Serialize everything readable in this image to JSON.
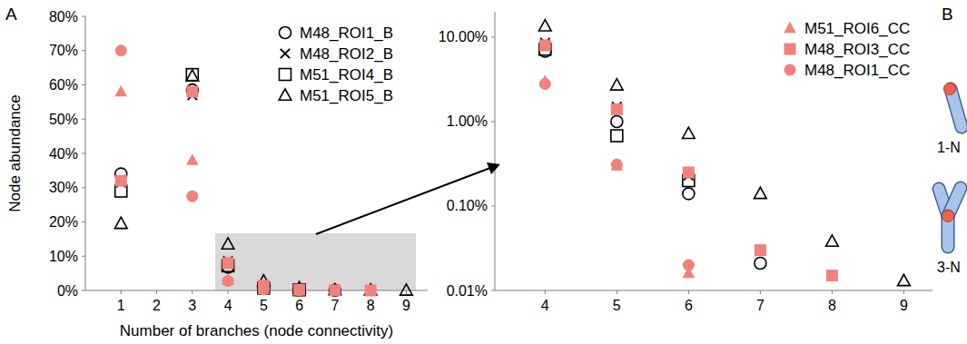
{
  "chart_data": [
    {
      "type": "scatter",
      "x_label": "Number of branches (node connectivity)",
      "y_label": "Node abundance",
      "x": [
        1,
        3,
        4,
        5,
        6,
        7,
        8,
        9
      ],
      "series": [
        {
          "name": "M48_ROI1_B",
          "color": "#000000",
          "marker": "circle-open",
          "values": [
            34,
            58.5,
            6.8,
            1.0,
            0.14,
            0.021,
            null,
            null
          ]
        },
        {
          "name": "M48_ROI2_B",
          "color": "#000000",
          "marker": "x",
          "values": [
            31.5,
            57,
            8.6,
            1.5,
            0.23,
            null,
            null,
            null
          ]
        },
        {
          "name": "M51_ROI4_B",
          "color": "#000000",
          "marker": "square-open",
          "values": [
            29,
            63,
            7.2,
            0.68,
            0.2,
            null,
            null,
            null
          ]
        },
        {
          "name": "M51_ROI5_B",
          "color": "#000000",
          "marker": "triangle-open",
          "values": [
            19.5,
            62.5,
            13.5,
            2.7,
            0.72,
            0.14,
            0.038,
            0.013
          ]
        },
        {
          "name": "M51_ROI6_CC",
          "color": "#f2817b",
          "marker": "triangle",
          "values": [
            58,
            38,
            3.0,
            0.3,
            0.016,
            null,
            null,
            null
          ]
        },
        {
          "name": "M48_ROI3_CC",
          "color": "#f2817b",
          "marker": "square",
          "values": [
            32,
            58,
            8.0,
            1.4,
            0.25,
            0.03,
            0.015,
            null
          ]
        },
        {
          "name": "M48_ROI1_CC",
          "color": "#f2817b",
          "marker": "circle",
          "values": [
            70,
            27.5,
            2.8,
            0.31,
            0.02,
            null,
            null,
            null
          ]
        }
      ],
      "xlim": [
        0,
        9.6
      ],
      "ylim": [
        0,
        80
      ],
      "xticks": [
        1,
        2,
        3,
        4,
        5,
        6,
        7,
        8,
        9
      ],
      "yticks": [
        {
          "value": 0,
          "label": "0%"
        },
        {
          "value": 10,
          "label": "10%"
        },
        {
          "value": 20,
          "label": "20%"
        },
        {
          "value": 30,
          "label": "30%"
        },
        {
          "value": 40,
          "label": "40%"
        },
        {
          "value": 50,
          "label": "50%"
        },
        {
          "value": 60,
          "label": "60%"
        },
        {
          "value": 70,
          "label": "70%"
        },
        {
          "value": 80,
          "label": "80%"
        }
      ],
      "legend": "upper right"
    },
    {
      "type": "scatter",
      "log": "y",
      "xlim": [
        3.3,
        9.4
      ],
      "ylim": [
        0.01,
        20
      ],
      "xticks": [
        4,
        5,
        6,
        7,
        8,
        9
      ],
      "yticks": [
        {
          "value": 0.01,
          "label": "0.01%"
        },
        {
          "value": 0.1,
          "label": "0.10%"
        },
        {
          "value": 1,
          "label": "1.00%"
        },
        {
          "value": 10,
          "label": "10.00%"
        }
      ],
      "legend": "upper right"
    }
  ],
  "panel_labels": [
    "A",
    "B"
  ],
  "diagram": {
    "labels": [
      "1-N",
      "3-N"
    ]
  }
}
